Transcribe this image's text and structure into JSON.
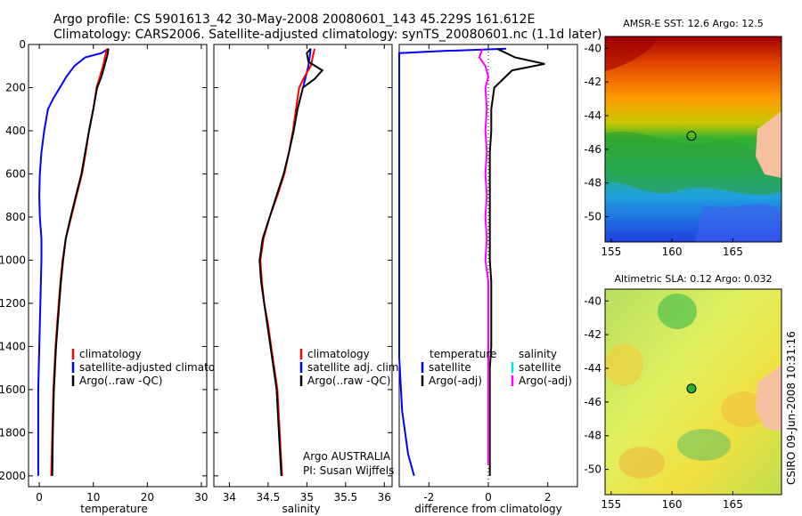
{
  "header": {
    "line1": "Argo profile: CS 5901613_42 30-May-2008 20080601_143 45.229S 161.612E",
    "line2": "Climatology: CARS2006. Satellite-adjusted climatology: synTS_20080601.nc (1.1d later)"
  },
  "footer": {
    "credit1": "Argo AUSTRALIA",
    "credit2": "PI: Susan Wijffels",
    "stamp": "CSIRO 09-Jun-2008 10:31:16"
  },
  "colors": {
    "climatology": "#ff0000",
    "satellite": "#0000ff",
    "argo": "#000000",
    "salinity_satellite": "#00e5e5",
    "salinity_argo": "#ff00ff"
  },
  "chart_data": [
    {
      "id": "temperature",
      "type": "line",
      "xlabel": "temperature",
      "xlim": [
        -2,
        31
      ],
      "xticks": [
        0,
        10,
        20,
        30
      ],
      "ylim": [
        2050,
        0
      ],
      "yticks": [
        0,
        200,
        400,
        600,
        800,
        1000,
        1200,
        1400,
        1600,
        1800,
        2000
      ],
      "y_reversed": true,
      "legend": [
        "climatology",
        "satellite-adjusted climatology",
        "Argo(..raw -QC)"
      ],
      "series": [
        {
          "name": "satellite-adjusted climatology",
          "color": "#0000ff",
          "points": [
            [
              12.8,
              20
            ],
            [
              11.5,
              40
            ],
            [
              8.5,
              60
            ],
            [
              6.5,
              100
            ],
            [
              5,
              150
            ],
            [
              3.8,
              200
            ],
            [
              2.6,
              250
            ],
            [
              1.6,
              300
            ],
            [
              0.9,
              400
            ],
            [
              0.4,
              500
            ],
            [
              0.1,
              600
            ],
            [
              0,
              700
            ],
            [
              0.1,
              800
            ],
            [
              0.4,
              900
            ],
            [
              0.4,
              1000
            ],
            [
              0.3,
              1100
            ],
            [
              0.2,
              1200
            ],
            [
              0.1,
              1300
            ],
            [
              0,
              1400
            ],
            [
              -0.1,
              1500
            ],
            [
              -0.2,
              1600
            ],
            [
              -0.2,
              1800
            ],
            [
              -0.2,
              2000
            ]
          ]
        },
        {
          "name": "climatology",
          "color": "#ff0000",
          "points": [
            [
              12.5,
              20
            ],
            [
              11.8,
              100
            ],
            [
              11.2,
              150
            ],
            [
              10.6,
              200
            ],
            [
              10,
              300
            ],
            [
              9.2,
              400
            ],
            [
              8.6,
              500
            ],
            [
              7.9,
              600
            ],
            [
              6.9,
              700
            ],
            [
              5.9,
              800
            ],
            [
              4.9,
              900
            ],
            [
              4.3,
              1000
            ],
            [
              3.9,
              1100
            ],
            [
              3.6,
              1200
            ],
            [
              3.3,
              1300
            ],
            [
              3,
              1400
            ],
            [
              2.8,
              1500
            ],
            [
              2.6,
              1600
            ],
            [
              2.4,
              1800
            ],
            [
              2.2,
              2000
            ]
          ]
        },
        {
          "name": "Argo(..raw -QC)",
          "color": "#000000",
          "points": [
            [
              12.8,
              20
            ],
            [
              12.6,
              50
            ],
            [
              11.5,
              150
            ],
            [
              10.7,
              200
            ],
            [
              10,
              300
            ],
            [
              9.2,
              400
            ],
            [
              8.5,
              500
            ],
            [
              7.8,
              600
            ],
            [
              6.8,
              700
            ],
            [
              5.8,
              800
            ],
            [
              4.9,
              900
            ],
            [
              4.4,
              1000
            ],
            [
              4,
              1100
            ],
            [
              3.7,
              1200
            ],
            [
              3.4,
              1300
            ],
            [
              3.1,
              1400
            ],
            [
              2.9,
              1500
            ],
            [
              2.7,
              1600
            ],
            [
              2.5,
              1800
            ],
            [
              2.4,
              2000
            ]
          ]
        }
      ]
    },
    {
      "id": "salinity",
      "type": "line",
      "xlabel": "salinity",
      "xlim": [
        33.8,
        36.1
      ],
      "xticks": [
        34,
        34.5,
        35,
        35.5,
        36
      ],
      "ylim": [
        2050,
        0
      ],
      "yticks": [
        0,
        200,
        400,
        600,
        800,
        1000,
        1200,
        1400,
        1600,
        1800,
        2000
      ],
      "y_reversed": true,
      "legend": [
        "climatology",
        "satellite adj. clim.",
        "Argo(..raw -QC)"
      ],
      "series": [
        {
          "name": "satellite adj. clim.",
          "color": "#0000ff",
          "points": [
            [
              35.05,
              20
            ],
            [
              35.02,
              100
            ],
            [
              34.95,
              200
            ]
          ]
        },
        {
          "name": "climatology",
          "color": "#ff0000",
          "points": [
            [
              35.1,
              20
            ],
            [
              35.05,
              100
            ],
            [
              34.97,
              150
            ],
            [
              34.9,
              200
            ],
            [
              34.86,
              300
            ],
            [
              34.82,
              400
            ],
            [
              34.77,
              500
            ],
            [
              34.71,
              600
            ],
            [
              34.62,
              700
            ],
            [
              34.52,
              800
            ],
            [
              34.44,
              900
            ],
            [
              34.4,
              1000
            ],
            [
              34.42,
              1100
            ],
            [
              34.45,
              1200
            ],
            [
              34.5,
              1300
            ],
            [
              34.54,
              1400
            ],
            [
              34.58,
              1500
            ],
            [
              34.62,
              1600
            ],
            [
              34.65,
              1800
            ],
            [
              34.68,
              2000
            ]
          ]
        },
        {
          "name": "Argo(..raw -QC)",
          "color": "#000000",
          "points": [
            [
              35.05,
              20
            ],
            [
              35.0,
              40
            ],
            [
              35.02,
              80
            ],
            [
              35.2,
              120
            ],
            [
              35.1,
              160
            ],
            [
              34.95,
              200
            ],
            [
              34.88,
              300
            ],
            [
              34.83,
              400
            ],
            [
              34.77,
              500
            ],
            [
              34.7,
              600
            ],
            [
              34.61,
              700
            ],
            [
              34.52,
              800
            ],
            [
              34.43,
              900
            ],
            [
              34.39,
              1000
            ],
            [
              34.41,
              1100
            ],
            [
              34.45,
              1200
            ],
            [
              34.49,
              1300
            ],
            [
              34.53,
              1400
            ],
            [
              34.57,
              1500
            ],
            [
              34.61,
              1600
            ],
            [
              34.64,
              1800
            ],
            [
              34.67,
              2000
            ]
          ]
        }
      ]
    },
    {
      "id": "difference",
      "type": "line",
      "xlabel": "difference from climatology",
      "xlim": [
        -3,
        3
      ],
      "xticks": [
        -2,
        0,
        2
      ],
      "ylim": [
        2050,
        0
      ],
      "yticks": [
        0,
        200,
        400,
        600,
        800,
        1000,
        1200,
        1400,
        1600,
        1800,
        2000
      ],
      "y_reversed": true,
      "legend": {
        "temperature_head": "temperature",
        "salinity_head": "salinity",
        "temperature": [
          "satellite",
          "Argo(-adj)"
        ],
        "salinity": [
          "satellite",
          "Argo(-adj)"
        ]
      },
      "series": [
        {
          "name": "temperature satellite",
          "color": "#0000ff",
          "points": [
            [
              0.6,
              20
            ],
            [
              -1.5,
              30
            ],
            [
              -3,
              40
            ],
            [
              -3,
              1450
            ],
            [
              -2.9,
              1700
            ],
            [
              -2.7,
              1900
            ],
            [
              -2.5,
              2000
            ]
          ]
        },
        {
          "name": "temperature Argo(-adj)",
          "color": "#000000",
          "points": [
            [
              0.3,
              20
            ],
            [
              0.9,
              60
            ],
            [
              1.9,
              90
            ],
            [
              0.8,
              120
            ],
            [
              0.2,
              200
            ],
            [
              0.1,
              300
            ],
            [
              0.1,
              400
            ],
            [
              0.05,
              500
            ],
            [
              0.05,
              600
            ],
            [
              0.05,
              700
            ],
            [
              0.05,
              800
            ],
            [
              0.05,
              900
            ],
            [
              0.05,
              1000
            ],
            [
              0.1,
              1100
            ],
            [
              0.1,
              1200
            ],
            [
              0.1,
              1300
            ],
            [
              0.1,
              1400
            ],
            [
              0.05,
              1500
            ],
            [
              0.05,
              1600
            ],
            [
              0.05,
              1800
            ],
            [
              0.05,
              2000
            ]
          ]
        },
        {
          "name": "salinity Argo(-adj)",
          "color": "#ff00ff",
          "points": [
            [
              -0.2,
              20
            ],
            [
              -0.3,
              60
            ],
            [
              -0.1,
              100
            ],
            [
              0.0,
              150
            ],
            [
              -0.1,
              200
            ],
            [
              -0.05,
              300
            ],
            [
              -0.1,
              400
            ],
            [
              -0.05,
              500
            ],
            [
              -0.1,
              600
            ],
            [
              -0.05,
              700
            ],
            [
              -0.1,
              800
            ],
            [
              -0.05,
              900
            ],
            [
              -0.1,
              1000
            ],
            [
              0.0,
              1100
            ],
            [
              0.0,
              1200
            ],
            [
              0.0,
              1300
            ],
            [
              0.0,
              1400
            ],
            [
              0.0,
              1500
            ],
            [
              0.0,
              1600
            ],
            [
              0.0,
              1800
            ],
            [
              0.0,
              1950
            ]
          ]
        }
      ]
    },
    {
      "id": "sst-map",
      "type": "heatmap",
      "title": "AMSR-E SST: 12.6 Argo: 12.5",
      "xlim": [
        154.5,
        169
      ],
      "ylim": [
        -51.5,
        -39.3
      ],
      "xticks": [
        155,
        160,
        165
      ],
      "yticks": [
        -40,
        -42,
        -44,
        -46,
        -48,
        -50
      ],
      "marker": {
        "lon": 161.6,
        "lat": -45.2,
        "style": "open circle"
      }
    },
    {
      "id": "sla-map",
      "type": "heatmap",
      "title": "Altimetric SLA: 0.12 Argo: 0.032",
      "xlim": [
        154.5,
        169
      ],
      "ylim": [
        -51.5,
        -39.3
      ],
      "xticks": [
        155,
        160,
        165
      ],
      "yticks": [
        -40,
        -42,
        -44,
        -46,
        -48,
        -50
      ],
      "marker": {
        "lon": 161.6,
        "lat": -45.2,
        "style": "filled circle"
      }
    }
  ]
}
